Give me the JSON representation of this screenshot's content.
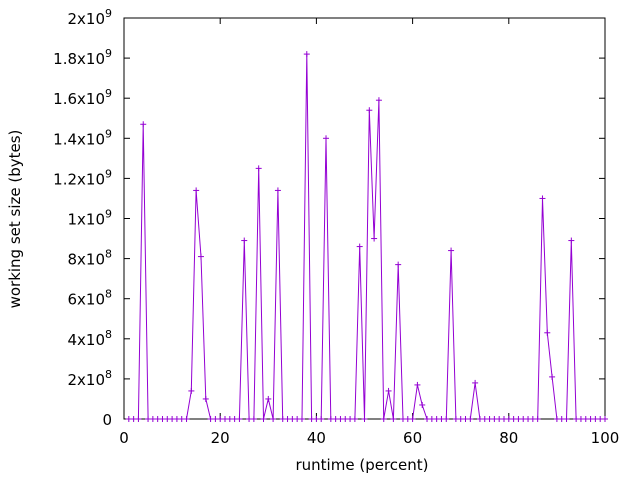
{
  "chart_data": {
    "type": "line",
    "title": "",
    "xlabel": "runtime (percent)",
    "ylabel": "working set size (bytes)",
    "xlim": [
      0,
      100
    ],
    "ylim": [
      0,
      2000000000
    ],
    "grid": false,
    "legend": "none",
    "x_ticks": [
      0,
      20,
      40,
      60,
      80,
      100
    ],
    "x_tick_labels": [
      "0",
      "20",
      "40",
      "60",
      "80",
      "100"
    ],
    "y_ticks": [
      {
        "value": 0,
        "mantissa": "0",
        "exp": ""
      },
      {
        "value": 200000000,
        "mantissa": "2x10",
        "exp": "8"
      },
      {
        "value": 400000000,
        "mantissa": "4x10",
        "exp": "8"
      },
      {
        "value": 600000000,
        "mantissa": "6x10",
        "exp": "8"
      },
      {
        "value": 800000000,
        "mantissa": "8x10",
        "exp": "8"
      },
      {
        "value": 1000000000,
        "mantissa": "1x10",
        "exp": "9"
      },
      {
        "value": 1200000000,
        "mantissa": "1.2x10",
        "exp": "9"
      },
      {
        "value": 1400000000,
        "mantissa": "1.4x10",
        "exp": "9"
      },
      {
        "value": 1600000000,
        "mantissa": "1.6x10",
        "exp": "9"
      },
      {
        "value": 1800000000,
        "mantissa": "1.8x10",
        "exp": "9"
      },
      {
        "value": 2000000000,
        "mantissa": "2x10",
        "exp": "9"
      }
    ],
    "series": [
      {
        "color": "#9400d3",
        "marker": "plus",
        "x": [
          1,
          2,
          3,
          4,
          5,
          6,
          7,
          8,
          9,
          10,
          11,
          12,
          13,
          14,
          15,
          16,
          17,
          18,
          19,
          20,
          21,
          22,
          23,
          24,
          25,
          26,
          27,
          28,
          29,
          30,
          31,
          32,
          33,
          34,
          35,
          36,
          37,
          38,
          39,
          40,
          41,
          42,
          43,
          44,
          45,
          46,
          47,
          48,
          49,
          50,
          51,
          52,
          53,
          54,
          55,
          56,
          57,
          58,
          59,
          60,
          61,
          62,
          63,
          64,
          65,
          66,
          67,
          68,
          69,
          70,
          71,
          72,
          73,
          74,
          75,
          76,
          77,
          78,
          79,
          80,
          81,
          82,
          83,
          84,
          85,
          86,
          87,
          88,
          89,
          90,
          91,
          92,
          93,
          94,
          95,
          96,
          97,
          98,
          99,
          100
        ],
        "values": [
          0,
          0,
          0,
          1470000000,
          0,
          0,
          0,
          0,
          0,
          0,
          0,
          0,
          0,
          140000000,
          1140000000,
          810000000,
          100000000,
          0,
          0,
          0,
          0,
          0,
          0,
          0,
          890000000,
          0,
          0,
          1250000000,
          0,
          100000000,
          0,
          1140000000,
          0,
          0,
          0,
          0,
          0,
          1820000000,
          0,
          0,
          0,
          1400000000,
          0,
          0,
          0,
          0,
          0,
          0,
          860000000,
          0,
          1540000000,
          900000000,
          1590000000,
          0,
          140000000,
          0,
          770000000,
          0,
          0,
          0,
          170000000,
          70000000,
          0,
          0,
          0,
          0,
          0,
          840000000,
          0,
          0,
          0,
          0,
          180000000,
          0,
          0,
          0,
          0,
          0,
          0,
          0,
          0,
          0,
          0,
          0,
          0,
          0,
          1100000000,
          430000000,
          210000000,
          0,
          0,
          0,
          890000000,
          0,
          0,
          0,
          0,
          0,
          0,
          0
        ]
      }
    ]
  }
}
